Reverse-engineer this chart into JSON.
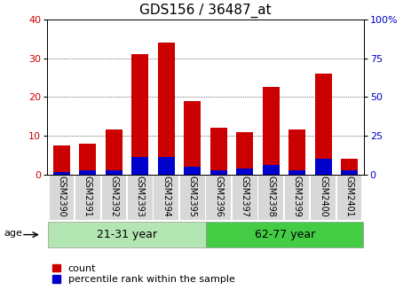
{
  "title": "GDS156 / 36487_at",
  "samples": [
    "GSM2390",
    "GSM2391",
    "GSM2392",
    "GSM2393",
    "GSM2394",
    "GSM2395",
    "GSM2396",
    "GSM2397",
    "GSM2398",
    "GSM2399",
    "GSM2400",
    "GSM2401"
  ],
  "red_values": [
    7.5,
    8.0,
    11.5,
    31.0,
    34.0,
    19.0,
    12.0,
    11.0,
    22.5,
    11.5,
    26.0,
    4.0
  ],
  "blue_values": [
    0.5,
    1.0,
    1.0,
    4.5,
    4.5,
    2.0,
    1.0,
    1.5,
    2.5,
    1.0,
    4.0,
    1.0
  ],
  "red_color": "#cc0000",
  "blue_color": "#0000cc",
  "ylim_left": [
    0,
    40
  ],
  "ylim_right": [
    0,
    100
  ],
  "yticks_left": [
    0,
    10,
    20,
    30,
    40
  ],
  "yticks_right": [
    0,
    25,
    50,
    75,
    100
  ],
  "yticklabels_right": [
    "0",
    "25",
    "50",
    "75",
    "100%"
  ],
  "group1_label": "21-31 year",
  "group2_label": "62-77 year",
  "age_label": "age",
  "legend_count": "count",
  "legend_percentile": "percentile rank within the sample",
  "bar_width": 0.65,
  "red_color_legend": "#cc0000",
  "blue_color_legend": "#0000cc",
  "title_fontsize": 11,
  "axis_fontsize": 8,
  "label_fontsize": 7,
  "legend_fontsize": 8,
  "group_fontsize": 9,
  "group1_color": "#b3e6b3",
  "group2_color": "#44cc44"
}
